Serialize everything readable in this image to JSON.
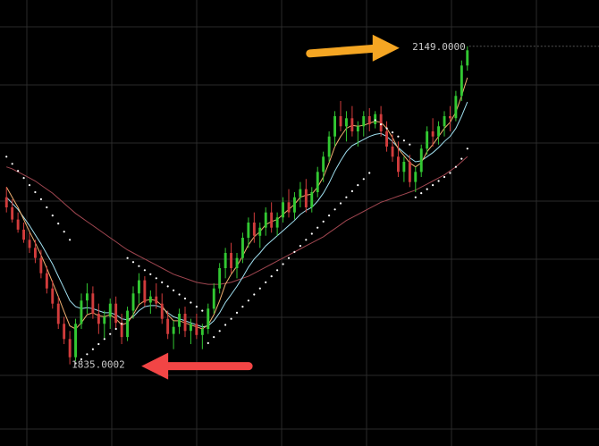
{
  "chart_data": {
    "type": "candlestick",
    "title": "",
    "xlabel": "",
    "ylabel": "",
    "grid": true,
    "ylim": [
      1780,
      2170
    ],
    "annotations": {
      "high_label": "2149.0000",
      "low_label": "1835.0002"
    },
    "arrows": [
      {
        "name": "high-arrow",
        "color": "#f5a623",
        "direction": "right"
      },
      {
        "name": "low-arrow",
        "color": "#f24545",
        "direction": "left"
      }
    ],
    "colors": {
      "up": "#32c832",
      "down": "#d23c3c",
      "ma_fast": "#f0b070",
      "ma_mid": "#a0e0f0",
      "ma_slow": "#a04650",
      "sar": "#ffffff",
      "grid": "#2a2a2a"
    },
    "candles_ohlc": [
      [
        2000,
        2010,
        1985,
        1990
      ],
      [
        1990,
        1998,
        1975,
        1978
      ],
      [
        1978,
        1985,
        1965,
        1968
      ],
      [
        1968,
        1975,
        1955,
        1958
      ],
      [
        1958,
        1965,
        1945,
        1950
      ],
      [
        1950,
        1958,
        1935,
        1940
      ],
      [
        1940,
        1948,
        1920,
        1925
      ],
      [
        1925,
        1932,
        1905,
        1910
      ],
      [
        1910,
        1918,
        1890,
        1895
      ],
      [
        1895,
        1902,
        1870,
        1875
      ],
      [
        1875,
        1882,
        1855,
        1860
      ],
      [
        1860,
        1868,
        1835,
        1842
      ],
      [
        1842,
        1880,
        1838,
        1875
      ],
      [
        1875,
        1905,
        1870,
        1898
      ],
      [
        1898,
        1915,
        1885,
        1905
      ],
      [
        1905,
        1912,
        1880,
        1885
      ],
      [
        1885,
        1895,
        1865,
        1875
      ],
      [
        1875,
        1888,
        1860,
        1882
      ],
      [
        1882,
        1900,
        1870,
        1895
      ],
      [
        1895,
        1902,
        1870,
        1876
      ],
      [
        1876,
        1885,
        1855,
        1862
      ],
      [
        1862,
        1892,
        1858,
        1888
      ],
      [
        1888,
        1912,
        1880,
        1905
      ],
      [
        1905,
        1925,
        1895,
        1918
      ],
      [
        1918,
        1922,
        1892,
        1896
      ],
      [
        1896,
        1908,
        1885,
        1902
      ],
      [
        1902,
        1915,
        1890,
        1895
      ],
      [
        1895,
        1905,
        1875,
        1880
      ],
      [
        1880,
        1888,
        1860,
        1865
      ],
      [
        1865,
        1878,
        1850,
        1872
      ],
      [
        1872,
        1890,
        1865,
        1885
      ],
      [
        1885,
        1892,
        1862,
        1868
      ],
      [
        1868,
        1880,
        1855,
        1875
      ],
      [
        1875,
        1885,
        1860,
        1864
      ],
      [
        1864,
        1875,
        1850,
        1870
      ],
      [
        1870,
        1895,
        1865,
        1890
      ],
      [
        1890,
        1915,
        1885,
        1910
      ],
      [
        1910,
        1935,
        1905,
        1930
      ],
      [
        1930,
        1950,
        1920,
        1945
      ],
      [
        1945,
        1955,
        1925,
        1930
      ],
      [
        1930,
        1945,
        1920,
        1940
      ],
      [
        1940,
        1965,
        1935,
        1960
      ],
      [
        1960,
        1980,
        1950,
        1975
      ],
      [
        1975,
        1985,
        1955,
        1962
      ],
      [
        1962,
        1975,
        1950,
        1970
      ],
      [
        1970,
        1990,
        1962,
        1985
      ],
      [
        1985,
        1995,
        1965,
        1970
      ],
      [
        1970,
        1985,
        1962,
        1980
      ],
      [
        1980,
        2000,
        1975,
        1995
      ],
      [
        1995,
        2008,
        1980,
        1985
      ],
      [
        1985,
        2005,
        1978,
        2000
      ],
      [
        2000,
        2015,
        1990,
        2008
      ],
      [
        2008,
        2018,
        1985,
        1990
      ],
      [
        1990,
        2010,
        1985,
        2005
      ],
      [
        2005,
        2030,
        2000,
        2025
      ],
      [
        2025,
        2045,
        2015,
        2040
      ],
      [
        2040,
        2065,
        2035,
        2060
      ],
      [
        2060,
        2085,
        2050,
        2080
      ],
      [
        2080,
        2095,
        2065,
        2070
      ],
      [
        2070,
        2085,
        2055,
        2078
      ],
      [
        2078,
        2090,
        2060,
        2065
      ],
      [
        2065,
        2075,
        2050,
        2070
      ],
      [
        2070,
        2085,
        2060,
        2080
      ],
      [
        2080,
        2088,
        2065,
        2072
      ],
      [
        2072,
        2085,
        2068,
        2082
      ],
      [
        2082,
        2090,
        2060,
        2065
      ],
      [
        2065,
        2075,
        2045,
        2050
      ],
      [
        2050,
        2062,
        2035,
        2040
      ],
      [
        2040,
        2055,
        2020,
        2025
      ],
      [
        2025,
        2040,
        2015,
        2035
      ],
      [
        2035,
        2042,
        2010,
        2015
      ],
      [
        2015,
        2030,
        2005,
        2025
      ],
      [
        2025,
        2052,
        2020,
        2048
      ],
      [
        2048,
        2070,
        2042,
        2065
      ],
      [
        2065,
        2078,
        2050,
        2060
      ],
      [
        2060,
        2075,
        2052,
        2070
      ],
      [
        2070,
        2085,
        2060,
        2080
      ],
      [
        2080,
        2090,
        2065,
        2078
      ],
      [
        2078,
        2105,
        2075,
        2100
      ],
      [
        2100,
        2135,
        2095,
        2130
      ],
      [
        2130,
        2149,
        2125,
        2145
      ]
    ],
    "ma_fast": [
      2010,
      2000,
      1990,
      1978,
      1966,
      1955,
      1943,
      1930,
      1916,
      1902,
      1887,
      1873,
      1870,
      1876,
      1884,
      1886,
      1883,
      1882,
      1884,
      1880,
      1874,
      1876,
      1884,
      1894,
      1898,
      1899,
      1898,
      1893,
      1884,
      1878,
      1878,
      1876,
      1874,
      1872,
      1870,
      1874,
      1884,
      1898,
      1914,
      1924,
      1932,
      1942,
      1953,
      1961,
      1966,
      1973,
      1976,
      1978,
      1983,
      1988,
      1993,
      2000,
      2002,
      2003,
      2010,
      2020,
      2034,
      2050,
      2060,
      2068,
      2071,
      2070,
      2071,
      2073,
      2075,
      2074,
      2068,
      2059,
      2048,
      2041,
      2034,
      2030,
      2034,
      2045,
      2052,
      2060,
      2068,
      2074,
      2084,
      2100,
      2118
    ],
    "ma_mid": [
      2000,
      1994,
      1988,
      1980,
      1972,
      1963,
      1954,
      1944,
      1934,
      1922,
      1910,
      1898,
      1892,
      1890,
      1891,
      1890,
      1888,
      1886,
      1886,
      1884,
      1880,
      1879,
      1882,
      1888,
      1892,
      1893,
      1893,
      1891,
      1886,
      1882,
      1880,
      1878,
      1876,
      1874,
      1872,
      1873,
      1878,
      1886,
      1896,
      1904,
      1912,
      1921,
      1931,
      1939,
      1945,
      1952,
      1957,
      1962,
      1967,
      1972,
      1977,
      1983,
      1987,
      1990,
      1996,
      2004,
      2014,
      2026,
      2036,
      2045,
      2051,
      2054,
      2057,
      2060,
      2062,
      2063,
      2060,
      2055,
      2049,
      2044,
      2039,
      2035,
      2036,
      2040,
      2044,
      2049,
      2055,
      2060,
      2068,
      2080,
      2094
    ],
    "ma_slow": [
      2030,
      2028,
      2025,
      2022,
      2019,
      2016,
      2012,
      2008,
      2004,
      1999,
      1994,
      1989,
      1984,
      1980,
      1976,
      1972,
      1968,
      1964,
      1960,
      1956,
      1952,
      1948,
      1945,
      1942,
      1939,
      1936,
      1933,
      1930,
      1927,
      1924,
      1922,
      1920,
      1918,
      1916,
      1915,
      1914,
      1914,
      1914,
      1915,
      1916,
      1918,
      1920,
      1922,
      1925,
      1928,
      1931,
      1934,
      1937,
      1940,
      1943,
      1946,
      1949,
      1952,
      1955,
      1958,
      1961,
      1965,
      1969,
      1973,
      1977,
      1980,
      1983,
      1986,
      1989,
      1992,
      1995,
      1997,
      1999,
      2001,
      2003,
      2005,
      2007,
      2010,
      2013,
      2016,
      2019,
      2022,
      2026,
      2030,
      2035,
      2040
    ],
    "sar": [
      2040,
      2033,
      2026,
      2019,
      2012,
      2005,
      1998,
      1990,
      1982,
      1974,
      1966,
      1958,
      1836,
      1840,
      1845,
      1850,
      1855,
      1860,
      1865,
      1870,
      1875,
      1940,
      1936,
      1932,
      1928,
      1924,
      1920,
      1916,
      1912,
      1908,
      1904,
      1900,
      1896,
      1892,
      1888,
      1856,
      1862,
      1868,
      1874,
      1880,
      1886,
      1892,
      1898,
      1904,
      1910,
      1916,
      1922,
      1928,
      1934,
      1940,
      1946,
      1952,
      1958,
      1964,
      1970,
      1976,
      1982,
      1988,
      1994,
      2000,
      2006,
      2012,
      2018,
      2024,
      2076,
      2072,
      2068,
      2064,
      2060,
      2056,
      2052,
      2000,
      2004,
      2008,
      2012,
      2016,
      2020,
      2024,
      2030,
      2038,
      2048
    ]
  }
}
